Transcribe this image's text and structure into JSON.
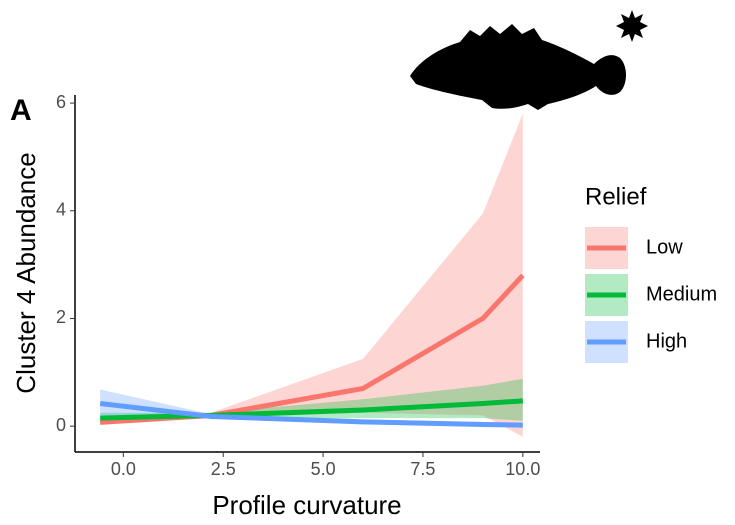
{
  "chart_data": {
    "type": "line",
    "panel_label": "A",
    "xlabel": "Profile curvature",
    "ylabel": "Cluster 4 Abundance",
    "legend_title": "Relief",
    "xlim": [
      -1.21,
      10.43
    ],
    "ylim": [
      -0.48,
      6.15
    ],
    "xticks": [
      {
        "value": 0,
        "label": "0.0"
      },
      {
        "value": 2.5,
        "label": "2.5"
      },
      {
        "value": 5,
        "label": "5.0"
      },
      {
        "value": 7.5,
        "label": "7.5"
      },
      {
        "value": 10,
        "label": "10.0"
      }
    ],
    "yticks": [
      0,
      2,
      4,
      6
    ],
    "series": [
      {
        "name": "Low",
        "color": "#F8766D",
        "ribbon_color": "#F8766D",
        "x": [
          -0.58,
          2.2,
          6,
          9,
          10
        ],
        "values": [
          0.07,
          0.2,
          0.7,
          2.0,
          2.8
        ],
        "upper": [
          0.1,
          0.25,
          1.25,
          3.95,
          5.8
        ],
        "lower": [
          0.03,
          0.15,
          0.25,
          0.2,
          -0.2
        ]
      },
      {
        "name": "Medium",
        "color": "#00BA38",
        "ribbon_color": "#00BA38",
        "x": [
          -0.58,
          2.2,
          6,
          9,
          10
        ],
        "values": [
          0.15,
          0.2,
          0.3,
          0.42,
          0.47
        ],
        "upper": [
          0.25,
          0.25,
          0.5,
          0.75,
          0.88
        ],
        "lower": [
          0.05,
          0.15,
          0.15,
          0.15,
          0.1
        ]
      },
      {
        "name": "High",
        "color": "#619CFF",
        "ribbon_color": "#619CFF",
        "x": [
          -0.58,
          2.2,
          6,
          9,
          10
        ],
        "values": [
          0.42,
          0.18,
          0.08,
          0.03,
          0.02
        ],
        "upper": [
          0.68,
          0.22,
          0.12,
          0.08,
          0.05
        ],
        "lower": [
          0.15,
          0.14,
          0.03,
          0,
          -0.02
        ]
      }
    ]
  }
}
